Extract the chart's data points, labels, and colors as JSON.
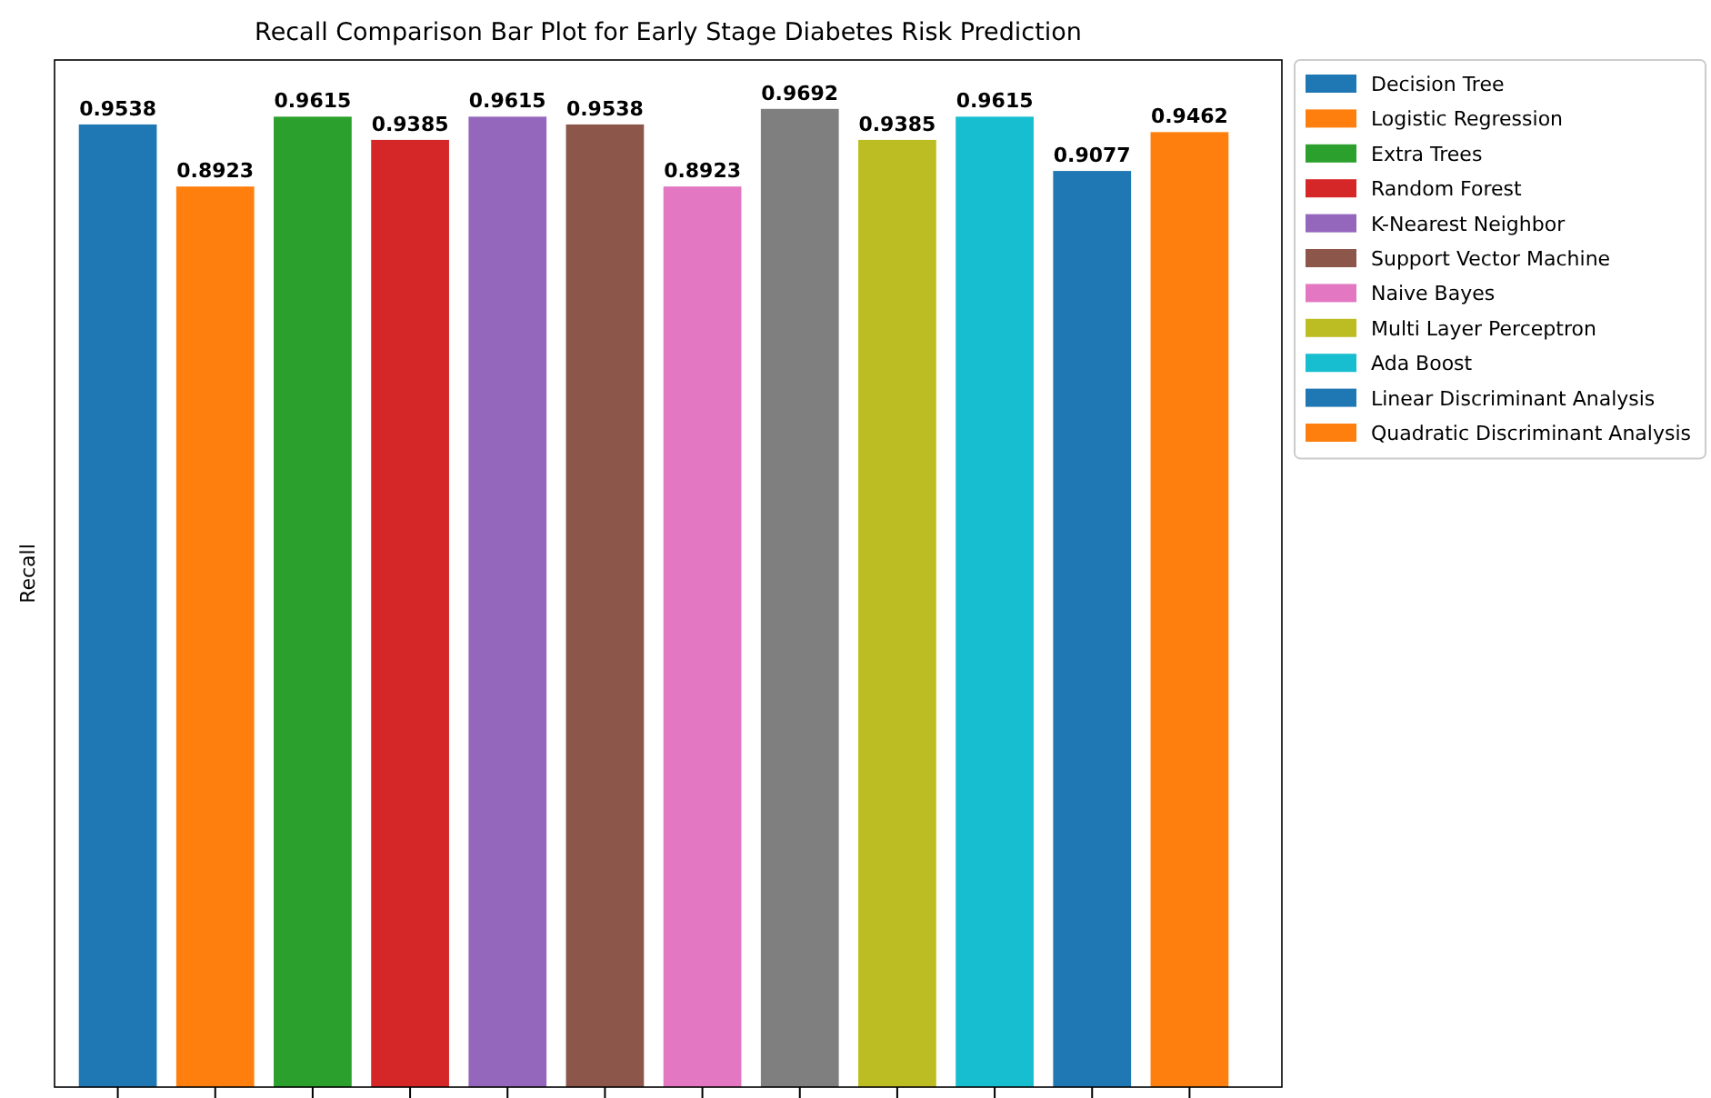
{
  "chart_data": {
    "type": "bar",
    "title": "Recall Comparison Bar Plot for Early Stage Diabetes Risk Prediction",
    "ylabel": "Recall",
    "categories": [
      null,
      null,
      null,
      null,
      null,
      null,
      null,
      null,
      null,
      null,
      null,
      null
    ],
    "series": [
      {
        "name": "Decision Tree",
        "color": "#1f77b4",
        "values": [
          0.9538,
          null,
          null,
          null,
          null,
          null,
          null,
          null,
          null,
          null,
          null,
          null
        ]
      },
      {
        "name": "Logistic Regression",
        "color": "#ff7f0e",
        "values": [
          null,
          0.8923,
          null,
          null,
          null,
          null,
          null,
          null,
          null,
          null,
          null,
          null
        ]
      },
      {
        "name": "Extra Trees",
        "color": "#2ca02c",
        "values": [
          null,
          null,
          0.9615,
          null,
          null,
          null,
          null,
          null,
          null,
          null,
          null,
          null
        ]
      },
      {
        "name": "Random Forest",
        "color": "#d62728",
        "values": [
          null,
          null,
          null,
          0.9385,
          null,
          null,
          null,
          null,
          null,
          null,
          null,
          null
        ]
      },
      {
        "name": "K-Nearest Neighbor",
        "color": "#9467bd",
        "values": [
          null,
          null,
          null,
          null,
          0.9615,
          null,
          null,
          null,
          null,
          null,
          null,
          null
        ]
      },
      {
        "name": "Support Vector Machine",
        "color": "#8c564b",
        "values": [
          null,
          null,
          null,
          null,
          null,
          0.9538,
          null,
          null,
          null,
          null,
          null,
          null
        ]
      },
      {
        "name": "Naive Bayes",
        "color": "#e377c2",
        "values": [
          null,
          null,
          null,
          null,
          null,
          null,
          0.8923,
          null,
          null,
          null,
          null,
          null
        ]
      },
      {
        "color": "#7f7f7f",
        "values": [
          null,
          null,
          null,
          null,
          null,
          null,
          null,
          0.9692,
          null,
          null,
          null,
          null
        ]
      },
      {
        "name": "Multi Layer Perceptron",
        "color": "#bcbd22",
        "values": [
          null,
          null,
          null,
          null,
          null,
          null,
          null,
          null,
          0.9385,
          null,
          null,
          null
        ]
      },
      {
        "name": "Ada Boost",
        "color": "#17becf",
        "values": [
          null,
          null,
          null,
          null,
          null,
          null,
          null,
          null,
          null,
          0.9615,
          null,
          null
        ]
      },
      {
        "name": "Linear Discriminant Analysis",
        "color": "#1f77b4",
        "values": [
          null,
          null,
          null,
          null,
          null,
          null,
          null,
          null,
          null,
          null,
          0.9077,
          null
        ]
      },
      {
        "name": "Quadratic Discriminant Analysis",
        "color": "#ff7f0e",
        "values": [
          null,
          null,
          null,
          null,
          null,
          null,
          null,
          null,
          null,
          null,
          null,
          0.9462
        ]
      }
    ],
    "stacked": true,
    "data_labels": true,
    "legend": "right"
  }
}
